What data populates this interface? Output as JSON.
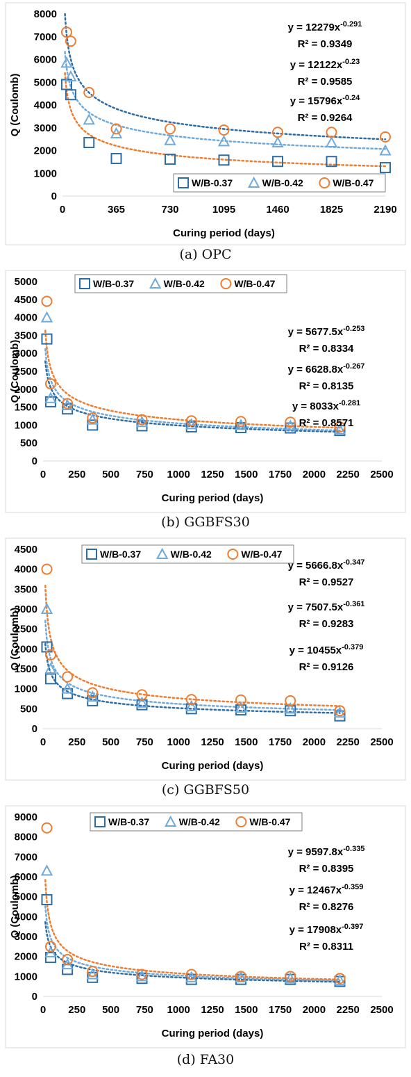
{
  "colors": {
    "s37": "#2E6DA4",
    "s42": "#6FAADB",
    "s47": "#ED7D31",
    "axis": "#D9D9D9",
    "text": "#000000"
  },
  "chart_data": [
    {
      "type": "scatter",
      "caption": "(a) OPC",
      "xlabel": "Curing period (days)",
      "ylabel": "Q (Coulomb)",
      "xlim": [
        0,
        2190
      ],
      "ylim": [
        0,
        8000
      ],
      "xticks": [
        0,
        365,
        730,
        1095,
        1460,
        1825,
        2190
      ],
      "yticks": [
        0,
        1000,
        2000,
        3000,
        4000,
        5000,
        6000,
        7000,
        8000
      ],
      "legend_position": "bottom-right",
      "series": [
        {
          "name": "W/B-0.37",
          "marker": "square",
          "x": [
            28,
            56,
            180,
            365,
            730,
            1095,
            1460,
            1825,
            2190
          ],
          "y": [
            4900,
            4450,
            2350,
            1650,
            1620,
            1580,
            1520,
            1520,
            1250
          ],
          "fit": {
            "a": 15796,
            "b": -0.24
          }
        },
        {
          "name": "W/B-0.42",
          "marker": "triangle",
          "x": [
            28,
            56,
            180,
            365,
            730,
            1095,
            1460,
            1825,
            2190
          ],
          "y": [
            5850,
            5250,
            3350,
            2750,
            2450,
            2400,
            2350,
            2350,
            2000
          ],
          "fit": {
            "a": 12122,
            "b": -0.23
          }
        },
        {
          "name": "W/B-0.47",
          "marker": "circle",
          "x": [
            28,
            56,
            180,
            365,
            730,
            1095,
            1460,
            1825,
            2190
          ],
          "y": [
            7200,
            6800,
            4550,
            2950,
            2950,
            2900,
            2800,
            2800,
            2600
          ],
          "fit": {
            "a": 12279,
            "b": -0.291
          }
        }
      ],
      "equations": [
        {
          "base": "y = 12279x",
          "exp": "-0.291",
          "r2": "R² = 0.9349"
        },
        {
          "base": "y = 12122x",
          "exp": "-0.23",
          "r2": "R² = 0.9585"
        },
        {
          "base": "y = 15796x",
          "exp": "-0.24",
          "r2": "R² = 0.9264"
        }
      ]
    },
    {
      "type": "scatter",
      "caption": "(b) GGBFS30",
      "xlabel": "Curing period (days)",
      "ylabel": "Q (Coulomb)",
      "xlim": [
        0,
        2500
      ],
      "ylim": [
        0,
        5000
      ],
      "xticks": [
        0,
        250,
        500,
        750,
        1000,
        1250,
        1500,
        1750,
        2000,
        2250,
        2500
      ],
      "yticks": [
        0,
        500,
        1000,
        1500,
        2000,
        2500,
        3000,
        3500,
        4000,
        4500,
        5000
      ],
      "legend_position": "top-left",
      "series": [
        {
          "name": "W/B-0.37",
          "marker": "square",
          "x": [
            28,
            56,
            180,
            365,
            730,
            1095,
            1460,
            1825,
            2190
          ],
          "y": [
            3400,
            1650,
            1450,
            1000,
            980,
            950,
            930,
            920,
            850
          ]
        },
        {
          "name": "W/B-0.42",
          "marker": "triangle",
          "x": [
            28,
            56,
            180,
            365,
            730,
            1095,
            1460,
            1825,
            2190
          ],
          "y": [
            4000,
            1750,
            1550,
            1150,
            1080,
            1020,
            1000,
            980,
            880
          ]
        },
        {
          "name": "W/B-0.47",
          "marker": "circle",
          "x": [
            28,
            56,
            180,
            365,
            730,
            1095,
            1460,
            1825,
            2190
          ],
          "y": [
            4450,
            2150,
            1600,
            1200,
            1150,
            1120,
            1100,
            1080,
            950
          ]
        }
      ],
      "fits": [
        {
          "a": 5677.5,
          "b": -0.253
        },
        {
          "a": 6628.8,
          "b": -0.267
        },
        {
          "a": 8033,
          "b": -0.281
        }
      ],
      "equations": [
        {
          "base": "y = 5677.5x",
          "exp": "-0.253",
          "r2": "R² = 0.8334"
        },
        {
          "base": "y = 6628.8x",
          "exp": "-0.267",
          "r2": "R² = 0.8135"
        },
        {
          "base": "y = 8033x",
          "exp": "-0.281",
          "r2": "R² = 0.8571"
        }
      ]
    },
    {
      "type": "scatter",
      "caption": "(c) GGBFS50",
      "xlabel": "Curing period (days)",
      "ylabel": "Q (Coulomb)",
      "xlim": [
        0,
        2500
      ],
      "ylim": [
        0,
        4500
      ],
      "xticks": [
        0,
        250,
        500,
        750,
        1000,
        1250,
        1500,
        1750,
        2000,
        2250,
        2500
      ],
      "yticks": [
        0,
        500,
        1000,
        1500,
        2000,
        2500,
        3000,
        3500,
        4000,
        4500
      ],
      "legend_position": "top-left",
      "series": [
        {
          "name": "W/B-0.37",
          "marker": "square",
          "x": [
            28,
            56,
            180,
            365,
            730,
            1095,
            1460,
            1825,
            2190
          ],
          "y": [
            2050,
            1250,
            880,
            700,
            600,
            500,
            470,
            450,
            320
          ]
        },
        {
          "name": "W/B-0.42",
          "marker": "triangle",
          "x": [
            28,
            56,
            180,
            365,
            730,
            1095,
            1460,
            1825,
            2190
          ],
          "y": [
            3000,
            1500,
            1000,
            800,
            650,
            560,
            520,
            500,
            400
          ]
        },
        {
          "name": "W/B-0.47",
          "marker": "circle",
          "x": [
            28,
            56,
            180,
            365,
            730,
            1095,
            1460,
            1825,
            2190
          ],
          "y": [
            4000,
            1850,
            1300,
            900,
            850,
            730,
            720,
            700,
            450
          ]
        }
      ],
      "fits": [
        {
          "a": 5666.8,
          "b": -0.347
        },
        {
          "a": 7507.5,
          "b": -0.361
        },
        {
          "a": 10455,
          "b": -0.379
        }
      ],
      "equations": [
        {
          "base": "y = 5666.8x",
          "exp": "-0.347",
          "r2": "R² = 0.9527"
        },
        {
          "base": "y = 7507.5x",
          "exp": "-0.361",
          "r2": "R² = 0.9283"
        },
        {
          "base": "y = 10455x",
          "exp": "-0.379",
          "r2": "R² = 0.9126"
        }
      ]
    },
    {
      "type": "scatter",
      "caption": "(d) FA30",
      "xlabel": "Curing period (days)",
      "ylabel": "Q (Coulomb)",
      "xlim": [
        0,
        2500
      ],
      "ylim": [
        0,
        9000
      ],
      "xticks": [
        0,
        250,
        500,
        750,
        1000,
        1250,
        1500,
        1750,
        2000,
        2250,
        2500
      ],
      "yticks": [
        0,
        1000,
        2000,
        3000,
        4000,
        5000,
        6000,
        7000,
        8000,
        9000
      ],
      "legend_position": "top-left",
      "series": [
        {
          "name": "W/B-0.37",
          "marker": "square",
          "x": [
            28,
            56,
            180,
            365,
            730,
            1095,
            1460,
            1825,
            2190
          ],
          "y": [
            4850,
            1950,
            1350,
            950,
            900,
            850,
            850,
            850,
            750
          ]
        },
        {
          "name": "W/B-0.42",
          "marker": "triangle",
          "x": [
            28,
            56,
            180,
            365,
            730,
            1095,
            1460,
            1825,
            2190
          ],
          "y": [
            6300,
            2200,
            1600,
            1100,
            1000,
            950,
            950,
            900,
            800
          ]
        },
        {
          "name": "W/B-0.47",
          "marker": "circle",
          "x": [
            28,
            56,
            180,
            365,
            730,
            1095,
            1460,
            1825,
            2190
          ],
          "y": [
            8450,
            2500,
            1850,
            1250,
            1100,
            1100,
            1000,
            1000,
            900
          ]
        }
      ],
      "fits": [
        {
          "a": 9597.8,
          "b": -0.335
        },
        {
          "a": 12467,
          "b": -0.359
        },
        {
          "a": 17908,
          "b": -0.397
        }
      ],
      "equations": [
        {
          "base": "y = 9597.8x",
          "exp": "-0.335",
          "r2": "R² = 0.8395"
        },
        {
          "base": "y = 12467x",
          "exp": "-0.359",
          "r2": "R² = 0.8276"
        },
        {
          "base": "y = 17908x",
          "exp": "-0.397",
          "r2": "R² = 0.8311"
        }
      ]
    }
  ]
}
